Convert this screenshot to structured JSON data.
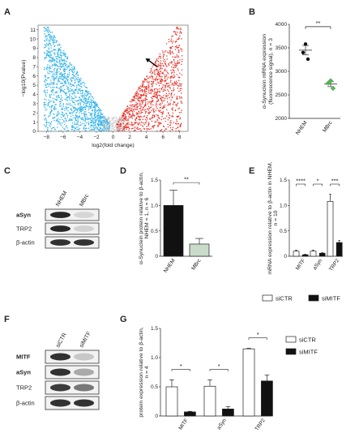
{
  "panels": {
    "A": {
      "letter": "A"
    },
    "B": {
      "letter": "B"
    },
    "C": {
      "letter": "C"
    },
    "D": {
      "letter": "D"
    },
    "E": {
      "letter": "E"
    },
    "F": {
      "letter": "F"
    },
    "G": {
      "letter": "G"
    }
  },
  "colors": {
    "down": "#34b4ea",
    "up": "#e8372f",
    "ns": "#c8c8c8",
    "black": "#111111",
    "mbrc_green": "#58b35a",
    "mbrc_bar": "#c9dcc9",
    "white": "#ffffff"
  },
  "blots": {
    "C": {
      "lanes": [
        "NHEM",
        "MBrc"
      ],
      "rows": [
        {
          "label": "aSyn",
          "bold": true,
          "bands": [
            0.95,
            0.08
          ]
        },
        {
          "label": "TRP2",
          "bold": false,
          "bands": [
            0.95,
            0.1
          ]
        },
        {
          "label": "β-actin",
          "bold": false,
          "bands": [
            0.9,
            0.9
          ]
        }
      ]
    },
    "F": {
      "lanes": [
        "siCTR",
        "siMITF"
      ],
      "rows": [
        {
          "label": "MITF",
          "bold": true,
          "bands": [
            0.9,
            0.15
          ]
        },
        {
          "label": "aSyn",
          "bold": true,
          "bands": [
            0.9,
            0.3
          ]
        },
        {
          "label": "TRP2",
          "bold": false,
          "bands": [
            0.85,
            0.55
          ]
        },
        {
          "label": "β-actin",
          "bold": false,
          "bands": [
            0.9,
            0.9
          ]
        }
      ]
    }
  },
  "chart_data": [
    {
      "id": "A",
      "type": "scatter",
      "subtype": "volcano",
      "xlabel": "log2(fold change)",
      "ylabel": "−log10(Pvalue)",
      "xlim": [
        -9,
        9
      ],
      "ylim": [
        0,
        11.5
      ],
      "xticks": [
        -8,
        -6,
        -4,
        -2,
        0,
        2,
        4,
        6,
        8
      ],
      "yticks": [
        0,
        1,
        2,
        3,
        4,
        5,
        6,
        7,
        8,
        9,
        10,
        11
      ],
      "arrow_at": [
        3.9,
        7.9
      ],
      "series": [
        {
          "id": "down",
          "color": "#34b4ea",
          "x_range": [
            -8.3,
            -0.5
          ]
        },
        {
          "id": "up",
          "color": "#e8372f",
          "x_range": [
            0.5,
            8.3
          ]
        },
        {
          "id": "ns",
          "color": "#c8c8c8",
          "x_range": [
            -1.3,
            1.3
          ]
        }
      ]
    },
    {
      "id": "B",
      "type": "scatter",
      "ylabel": "α-Synuclein mRNA expression (fluorescence signal), n = 3",
      "ylim": [
        2000,
        4000
      ],
      "yticks": [
        2000,
        2500,
        3000,
        3500,
        4000
      ],
      "categories": [
        "NHEM",
        "MBrc"
      ],
      "groups": [
        {
          "name": "NHEM",
          "points": [
            3400,
            3580,
            3260
          ],
          "mean": 3450,
          "sem": 100,
          "color": "#111111"
        },
        {
          "name": "MBrc",
          "points": [
            2750,
            2800,
            2640
          ],
          "mean": 2730,
          "sem": 55,
          "color": "#58b35a"
        }
      ],
      "significance": "**"
    },
    {
      "id": "D",
      "type": "bar",
      "ylabel": "α-Synuclein protein relative to β-actin, NHEM = 1, n = 6",
      "ylim": [
        0,
        1.5
      ],
      "yticks": [
        "0",
        "0.5",
        "1.0",
        "1.5"
      ],
      "categories": [
        "NHEM",
        "MBrc"
      ],
      "values": [
        1.0,
        0.24
      ],
      "errors": [
        0.3,
        0.11
      ],
      "colors": [
        "#111111",
        "#c9dcc9"
      ],
      "significance": "**"
    },
    {
      "id": "E",
      "type": "bar",
      "ylabel": "mRNA expression relative to β-actin in NHEM, n = 10",
      "ylim": [
        0,
        1.5
      ],
      "yticks": [
        "0",
        "0.5",
        "1.0",
        "1.5"
      ],
      "categories": [
        "MITF",
        "aSyn",
        "TRP2"
      ],
      "series": [
        {
          "name": "siCTR",
          "values": [
            0.1,
            0.1,
            1.08
          ],
          "errors": [
            0.02,
            0.02,
            0.14
          ],
          "fill": "#ffffff"
        },
        {
          "name": "siMITF",
          "values": [
            0.03,
            0.06,
            0.27
          ],
          "errors": [
            0.01,
            0.01,
            0.04
          ],
          "fill": "#111111"
        }
      ],
      "significance": [
        "****",
        "*",
        "***"
      ],
      "legend": [
        "siCTR",
        "siMITF"
      ]
    },
    {
      "id": "G",
      "type": "bar",
      "ylabel": "protein expression relative to β-actin, n = 4",
      "ylim": [
        0,
        1.5
      ],
      "yticks": [
        "0",
        "0.5",
        "1.0",
        "1.5"
      ],
      "categories": [
        "MITF",
        "aSyn",
        "TRP2"
      ],
      "series": [
        {
          "name": "siCTR",
          "values": [
            0.5,
            0.51,
            1.15
          ],
          "errors": [
            0.12,
            0.11,
            0.01
          ],
          "fill": "#ffffff"
        },
        {
          "name": "siMITF",
          "values": [
            0.07,
            0.12,
            0.6
          ],
          "errors": [
            0.01,
            0.04,
            0.1
          ],
          "fill": "#111111"
        }
      ],
      "significance": [
        "*",
        "*",
        "*"
      ],
      "legend": [
        "siCTR",
        "siMITF"
      ]
    }
  ]
}
